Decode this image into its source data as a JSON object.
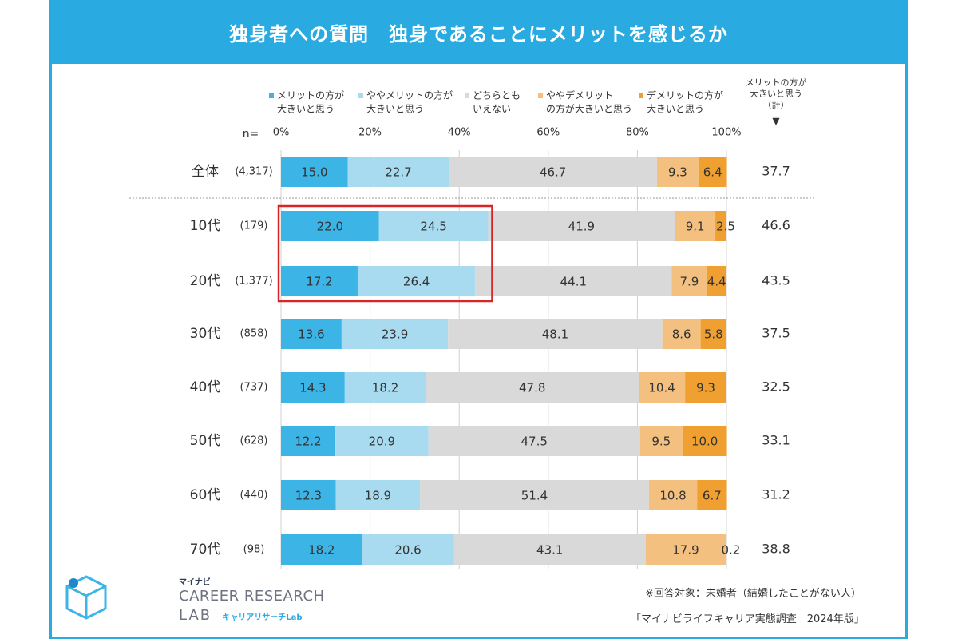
{
  "title": "独身者への質問　独身であることにメリットを感じるか",
  "chart_data": {
    "type": "bar",
    "orientation": "horizontal-stacked-100",
    "n_label": "n=",
    "x_tick_labels": [
      "0%",
      "20%",
      "40%",
      "60%",
      "80%",
      "100%"
    ],
    "xlim": [
      0,
      100
    ],
    "legend": [
      {
        "name": "メリットの方が\n大きいと思う",
        "color": "#3cb4e6"
      },
      {
        "name": "ややメリットの方が\n大きいと思う",
        "color": "#a8dbf0"
      },
      {
        "name": "どちらとも\nいえない",
        "color": "#d9d9d9"
      },
      {
        "name": "ややデメリット\nの方が大きいと思う",
        "color": "#f3c080"
      },
      {
        "name": "デメリットの方が\n大きいと思う",
        "color": "#f0a030"
      }
    ],
    "total_header": "メリットの方が\n大きいと思う\n（計）",
    "total_marker": "▼",
    "rows": [
      {
        "label": "全体",
        "n": "(4,317)",
        "values": [
          15.0,
          22.7,
          46.7,
          9.3,
          6.4
        ],
        "value_labels": [
          "15.0",
          "22.7",
          "46.7",
          "9.3",
          "6.4"
        ],
        "total": "37.7"
      },
      {
        "label": "10代",
        "n": "(179)",
        "values": [
          22.0,
          24.5,
          41.9,
          9.1,
          2.5
        ],
        "value_labels": [
          "22.0",
          "24.5",
          "41.9",
          "9.1",
          "2.5"
        ],
        "total": "46.6"
      },
      {
        "label": "20代",
        "n": "(1,377)",
        "values": [
          17.2,
          26.4,
          44.1,
          7.9,
          4.4
        ],
        "value_labels": [
          "17.2",
          "26.4",
          "44.1",
          "7.9",
          "4.4"
        ],
        "total": "43.5"
      },
      {
        "label": "30代",
        "n": "(858)",
        "values": [
          13.6,
          23.9,
          48.1,
          8.6,
          5.8
        ],
        "value_labels": [
          "13.6",
          "23.9",
          "48.1",
          "8.6",
          "5.8"
        ],
        "total": "37.5"
      },
      {
        "label": "40代",
        "n": "(737)",
        "values": [
          14.3,
          18.2,
          47.8,
          10.4,
          9.3
        ],
        "value_labels": [
          "14.3",
          "18.2",
          "47.8",
          "10.4",
          "9.3"
        ],
        "total": "32.5"
      },
      {
        "label": "50代",
        "n": "(628)",
        "values": [
          12.2,
          20.9,
          47.5,
          9.5,
          10.0
        ],
        "value_labels": [
          "12.2",
          "20.9",
          "47.5",
          "9.5",
          "10.0"
        ],
        "total": "33.1"
      },
      {
        "label": "60代",
        "n": "(440)",
        "values": [
          12.3,
          18.9,
          51.4,
          10.8,
          6.7
        ],
        "value_labels": [
          "12.3",
          "18.9",
          "51.4",
          "10.8",
          "6.7"
        ],
        "total": "31.2"
      },
      {
        "label": "70代",
        "n": "(98)",
        "values": [
          18.2,
          20.6,
          43.1,
          17.9,
          0.2
        ],
        "value_labels": [
          "18.2",
          "20.6",
          "43.1",
          "17.9",
          "0.2"
        ],
        "total": "38.8"
      }
    ],
    "highlight": {
      "rows": [
        "10代",
        "20代"
      ],
      "series": [
        0,
        1
      ],
      "color": "#d62728"
    },
    "separator_after": "全体",
    "grid": true
  },
  "footnote": "※回答対象：未婚者（結婚したことがない人）",
  "source": "「マイナビライフキャリア実態調査　2024年版」",
  "logo": {
    "brand": "マイナビ",
    "line1": "CAREER RESEARCH",
    "line2": "LAB",
    "jp": "キャリアリサーチLab"
  }
}
